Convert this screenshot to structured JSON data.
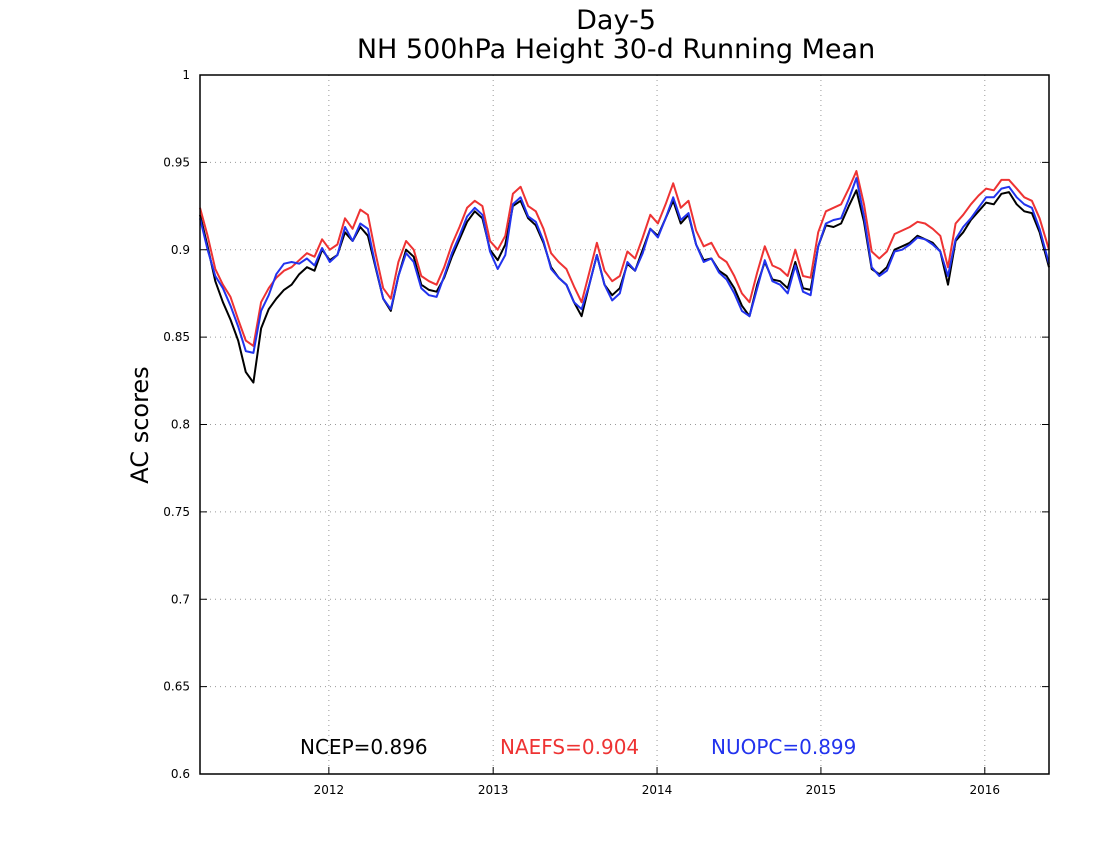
{
  "chart_data": {
    "type": "line",
    "title": "Day-5",
    "subtitle": "NH 500hPa Height 30-d Running Mean",
    "ylabel": "AC scores",
    "xlabel": "",
    "ylim": [
      0.6,
      1.0
    ],
    "xlim": [
      "2011-03-20",
      "2016-05-23"
    ],
    "y_ticks": [
      "0.6",
      "0.65",
      "0.7",
      "0.75",
      "0.8",
      "0.85",
      "0.9",
      "0.95",
      "1"
    ],
    "x_ticks": [
      "2012",
      "2013",
      "2014",
      "2015",
      "2016"
    ],
    "grid": true,
    "legend": [
      {
        "label": "NCEP=0.896",
        "color": "#000000"
      },
      {
        "label": "NAEFS=0.904",
        "color": "#ee3333"
      },
      {
        "label": "NUOPC=0.899",
        "color": "#2233ee"
      }
    ],
    "x": [
      "2011-03-20",
      "2011-04-06",
      "2011-04-23",
      "2011-05-10",
      "2011-05-27",
      "2011-06-13",
      "2011-06-30",
      "2011-07-17",
      "2011-08-03",
      "2011-08-20",
      "2011-09-06",
      "2011-09-23",
      "2011-10-10",
      "2011-10-27",
      "2011-11-13",
      "2011-11-30",
      "2011-12-17",
      "2012-01-03",
      "2012-01-20",
      "2012-02-06",
      "2012-02-23",
      "2012-03-11",
      "2012-03-28",
      "2012-04-14",
      "2012-05-01",
      "2012-05-18",
      "2012-06-04",
      "2012-06-21",
      "2012-07-08",
      "2012-07-25",
      "2012-08-11",
      "2012-08-28",
      "2012-09-14",
      "2012-10-01",
      "2012-10-18",
      "2012-11-04",
      "2012-11-21",
      "2012-12-08",
      "2012-12-25",
      "2013-01-11",
      "2013-01-28",
      "2013-02-14",
      "2013-03-03",
      "2013-03-20",
      "2013-04-06",
      "2013-04-23",
      "2013-05-10",
      "2013-05-27",
      "2013-06-13",
      "2013-06-30",
      "2013-07-17",
      "2013-08-03",
      "2013-08-20",
      "2013-09-06",
      "2013-09-23",
      "2013-10-10",
      "2013-10-27",
      "2013-11-13",
      "2013-11-30",
      "2013-12-17",
      "2014-01-03",
      "2014-01-20",
      "2014-02-06",
      "2014-02-23",
      "2014-03-12",
      "2014-03-29",
      "2014-04-15",
      "2014-05-02",
      "2014-05-19",
      "2014-06-05",
      "2014-06-22",
      "2014-07-09",
      "2014-07-26",
      "2014-08-12",
      "2014-08-29",
      "2014-09-15",
      "2014-10-02",
      "2014-10-19",
      "2014-11-05",
      "2014-11-22",
      "2014-12-09",
      "2014-12-26",
      "2015-01-12",
      "2015-01-29",
      "2015-02-15",
      "2015-03-04",
      "2015-03-21",
      "2015-04-07",
      "2015-04-24",
      "2015-05-11",
      "2015-05-28",
      "2015-06-14",
      "2015-07-01",
      "2015-07-18",
      "2015-08-04",
      "2015-08-21",
      "2015-09-07",
      "2015-09-24",
      "2015-10-11",
      "2015-10-28",
      "2015-11-14",
      "2015-12-01",
      "2015-12-18",
      "2016-01-04",
      "2016-01-21",
      "2016-02-07",
      "2016-02-24",
      "2016-03-12",
      "2016-03-29",
      "2016-04-15",
      "2016-05-02",
      "2016-05-23"
    ],
    "series": [
      {
        "name": "NCEP=0.896",
        "color": "#000000",
        "values": [
          0.92,
          0.902,
          0.882,
          0.87,
          0.86,
          0.848,
          0.83,
          0.824,
          0.855,
          0.866,
          0.872,
          0.877,
          0.88,
          0.886,
          0.89,
          0.888,
          0.9,
          0.894,
          0.897,
          0.91,
          0.905,
          0.913,
          0.908,
          0.89,
          0.872,
          0.865,
          0.885,
          0.9,
          0.896,
          0.88,
          0.877,
          0.876,
          0.884,
          0.896,
          0.906,
          0.916,
          0.922,
          0.918,
          0.9,
          0.894,
          0.903,
          0.925,
          0.928,
          0.918,
          0.914,
          0.904,
          0.89,
          0.884,
          0.88,
          0.87,
          0.862,
          0.88,
          0.897,
          0.88,
          0.874,
          0.878,
          0.892,
          0.888,
          0.9,
          0.912,
          0.908,
          0.918,
          0.928,
          0.915,
          0.92,
          0.903,
          0.894,
          0.895,
          0.888,
          0.885,
          0.878,
          0.868,
          0.862,
          0.88,
          0.893,
          0.883,
          0.882,
          0.878,
          0.893,
          0.878,
          0.877,
          0.902,
          0.914,
          0.913,
          0.915,
          0.925,
          0.934,
          0.916,
          0.889,
          0.886,
          0.89,
          0.9,
          0.902,
          0.904,
          0.908,
          0.906,
          0.904,
          0.899,
          0.88,
          0.905,
          0.91,
          0.917,
          0.922,
          0.927,
          0.926,
          0.932,
          0.933,
          0.926,
          0.922,
          0.921,
          0.91,
          0.89
        ]
      },
      {
        "name": "NAEFS=0.904",
        "color": "#ee3333",
        "values": [
          0.924,
          0.908,
          0.889,
          0.88,
          0.873,
          0.86,
          0.848,
          0.845,
          0.87,
          0.878,
          0.884,
          0.888,
          0.89,
          0.894,
          0.898,
          0.896,
          0.906,
          0.9,
          0.903,
          0.918,
          0.912,
          0.923,
          0.92,
          0.898,
          0.878,
          0.872,
          0.893,
          0.905,
          0.9,
          0.885,
          0.882,
          0.88,
          0.89,
          0.903,
          0.913,
          0.924,
          0.928,
          0.925,
          0.905,
          0.9,
          0.908,
          0.932,
          0.936,
          0.925,
          0.922,
          0.912,
          0.898,
          0.893,
          0.889,
          0.879,
          0.87,
          0.887,
          0.904,
          0.888,
          0.882,
          0.885,
          0.899,
          0.895,
          0.907,
          0.92,
          0.915,
          0.926,
          0.938,
          0.924,
          0.928,
          0.911,
          0.902,
          0.904,
          0.896,
          0.893,
          0.885,
          0.875,
          0.87,
          0.887,
          0.902,
          0.891,
          0.889,
          0.885,
          0.9,
          0.885,
          0.884,
          0.91,
          0.922,
          0.924,
          0.926,
          0.935,
          0.945,
          0.926,
          0.899,
          0.895,
          0.899,
          0.909,
          0.911,
          0.913,
          0.916,
          0.915,
          0.912,
          0.908,
          0.89,
          0.915,
          0.92,
          0.926,
          0.931,
          0.935,
          0.934,
          0.94,
          0.94,
          0.935,
          0.93,
          0.928,
          0.918,
          0.9
        ]
      },
      {
        "name": "NUOPC=0.899",
        "color": "#2233ee",
        "values": [
          0.918,
          0.9,
          0.885,
          0.878,
          0.868,
          0.856,
          0.842,
          0.841,
          0.865,
          0.874,
          0.886,
          0.892,
          0.893,
          0.892,
          0.895,
          0.891,
          0.901,
          0.893,
          0.897,
          0.913,
          0.905,
          0.915,
          0.912,
          0.891,
          0.872,
          0.866,
          0.885,
          0.898,
          0.893,
          0.878,
          0.874,
          0.873,
          0.885,
          0.898,
          0.908,
          0.919,
          0.924,
          0.92,
          0.899,
          0.889,
          0.897,
          0.926,
          0.93,
          0.919,
          0.916,
          0.905,
          0.889,
          0.884,
          0.88,
          0.87,
          0.866,
          0.88,
          0.897,
          0.88,
          0.871,
          0.875,
          0.893,
          0.888,
          0.898,
          0.912,
          0.907,
          0.918,
          0.93,
          0.917,
          0.921,
          0.903,
          0.893,
          0.895,
          0.887,
          0.883,
          0.875,
          0.865,
          0.862,
          0.878,
          0.894,
          0.882,
          0.88,
          0.875,
          0.891,
          0.876,
          0.874,
          0.902,
          0.915,
          0.917,
          0.918,
          0.929,
          0.941,
          0.919,
          0.89,
          0.885,
          0.888,
          0.899,
          0.9,
          0.903,
          0.907,
          0.906,
          0.903,
          0.899,
          0.885,
          0.906,
          0.913,
          0.918,
          0.924,
          0.93,
          0.93,
          0.935,
          0.936,
          0.93,
          0.926,
          0.924,
          0.912,
          0.892
        ]
      }
    ]
  }
}
